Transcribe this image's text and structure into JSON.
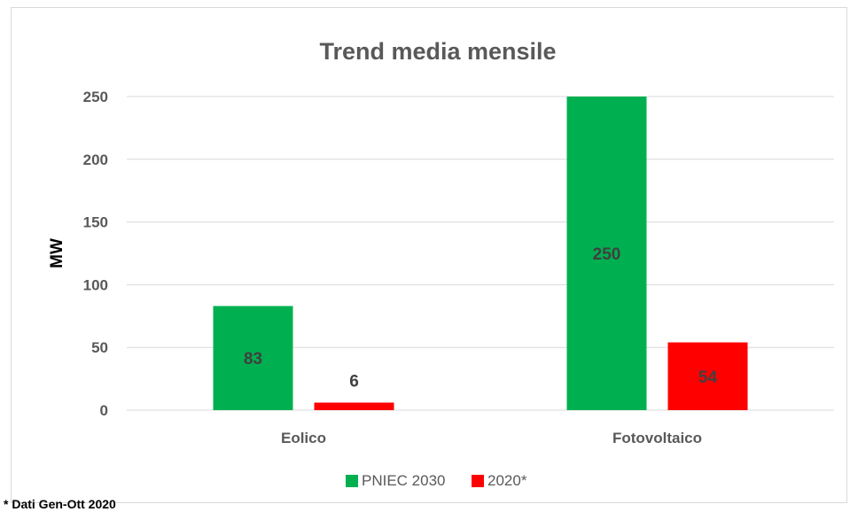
{
  "chart_data": {
    "type": "bar",
    "title": "Trend media mensile",
    "xlabel": "",
    "ylabel": "MW",
    "categories": [
      "Eolico",
      "Fotovoltaico"
    ],
    "series": [
      {
        "name": "PNIEC 2030",
        "values": [
          83,
          250
        ],
        "labels": [
          "83",
          "250"
        ],
        "color": "#00b050"
      },
      {
        "name": "2020*",
        "values": [
          6,
          54
        ],
        "labels": [
          "6",
          "54"
        ],
        "color": "#ff0000"
      }
    ],
    "ylim": [
      0,
      250
    ],
    "yticks": [
      "0",
      "50",
      "100",
      "150",
      "200",
      "250"
    ],
    "grid": true,
    "legend_position": "bottom"
  },
  "footnote": "* Dati Gen-Ott 2020"
}
